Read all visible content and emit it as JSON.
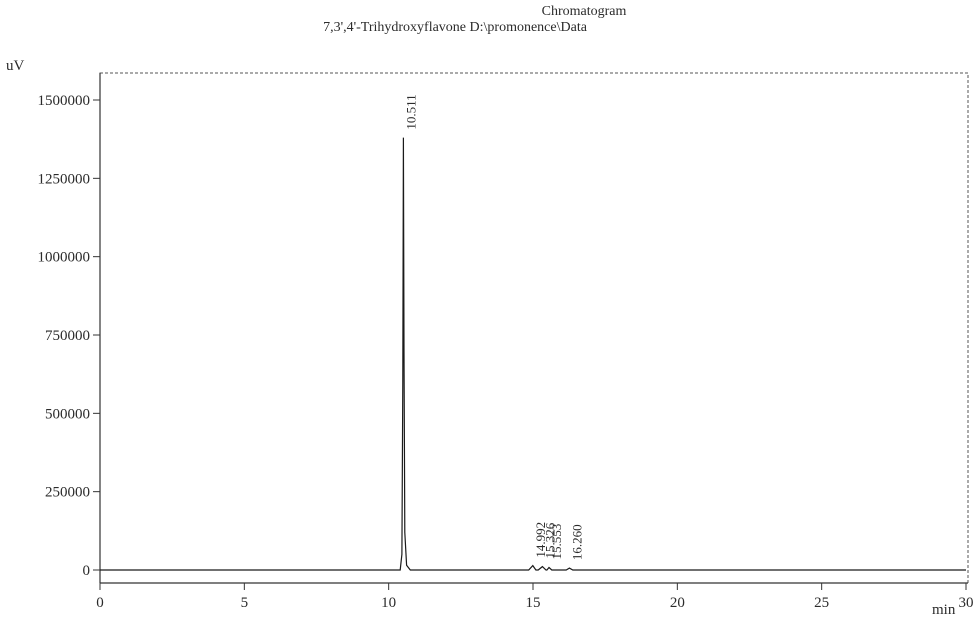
{
  "chart_data": {
    "type": "line",
    "title": "Chromatogram",
    "subtitle": "7,3',4'-Trihydroxyflavone D:\\promonence\\Data",
    "ylabel": "uV",
    "xlabel": "min",
    "xlim": [
      0,
      30
    ],
    "ylim": [
      -100000,
      1600000
    ],
    "x_ticks": [
      0,
      5,
      10,
      15,
      20,
      25,
      30
    ],
    "x_tick_labels": [
      "0",
      "5",
      "10",
      "15",
      "20",
      "25",
      "30"
    ],
    "y_ticks": [
      0,
      250000,
      500000,
      750000,
      1000000,
      1250000,
      1500000
    ],
    "y_tick_labels": [
      "0",
      "250000",
      "500000",
      "750000",
      "1000000",
      "1250000",
      "1500000"
    ],
    "grid": false,
    "series": [
      {
        "points": [
          [
            0,
            0
          ],
          [
            10.4,
            0
          ],
          [
            10.46,
            50000
          ],
          [
            10.49,
            600000
          ],
          [
            10.511,
            1380000
          ],
          [
            10.53,
            700000
          ],
          [
            10.56,
            120000
          ],
          [
            10.62,
            15000
          ],
          [
            10.75,
            0
          ],
          [
            14.85,
            0
          ],
          [
            14.992,
            14000
          ],
          [
            15.1,
            0
          ],
          [
            15.18,
            0
          ],
          [
            15.326,
            11000
          ],
          [
            15.45,
            0
          ],
          [
            15.48,
            0
          ],
          [
            15.553,
            8000
          ],
          [
            15.65,
            0
          ],
          [
            16.15,
            0
          ],
          [
            16.26,
            6000
          ],
          [
            16.38,
            0
          ],
          [
            30,
            0
          ]
        ]
      }
    ],
    "peaks": [
      {
        "time": 10.511,
        "label": "10.511",
        "height": 1380000
      },
      {
        "time": 14.992,
        "label": "14.992",
        "height": 14000
      },
      {
        "time": 15.326,
        "label": "15.326",
        "height": 11000
      },
      {
        "time": 15.553,
        "label": "15.553",
        "height": 8000
      },
      {
        "time": 16.26,
        "label": "16.260",
        "height": 6000
      }
    ],
    "colors": {
      "trace": "#1a1a1a",
      "axis": "#333333",
      "frame": "#555555"
    }
  }
}
